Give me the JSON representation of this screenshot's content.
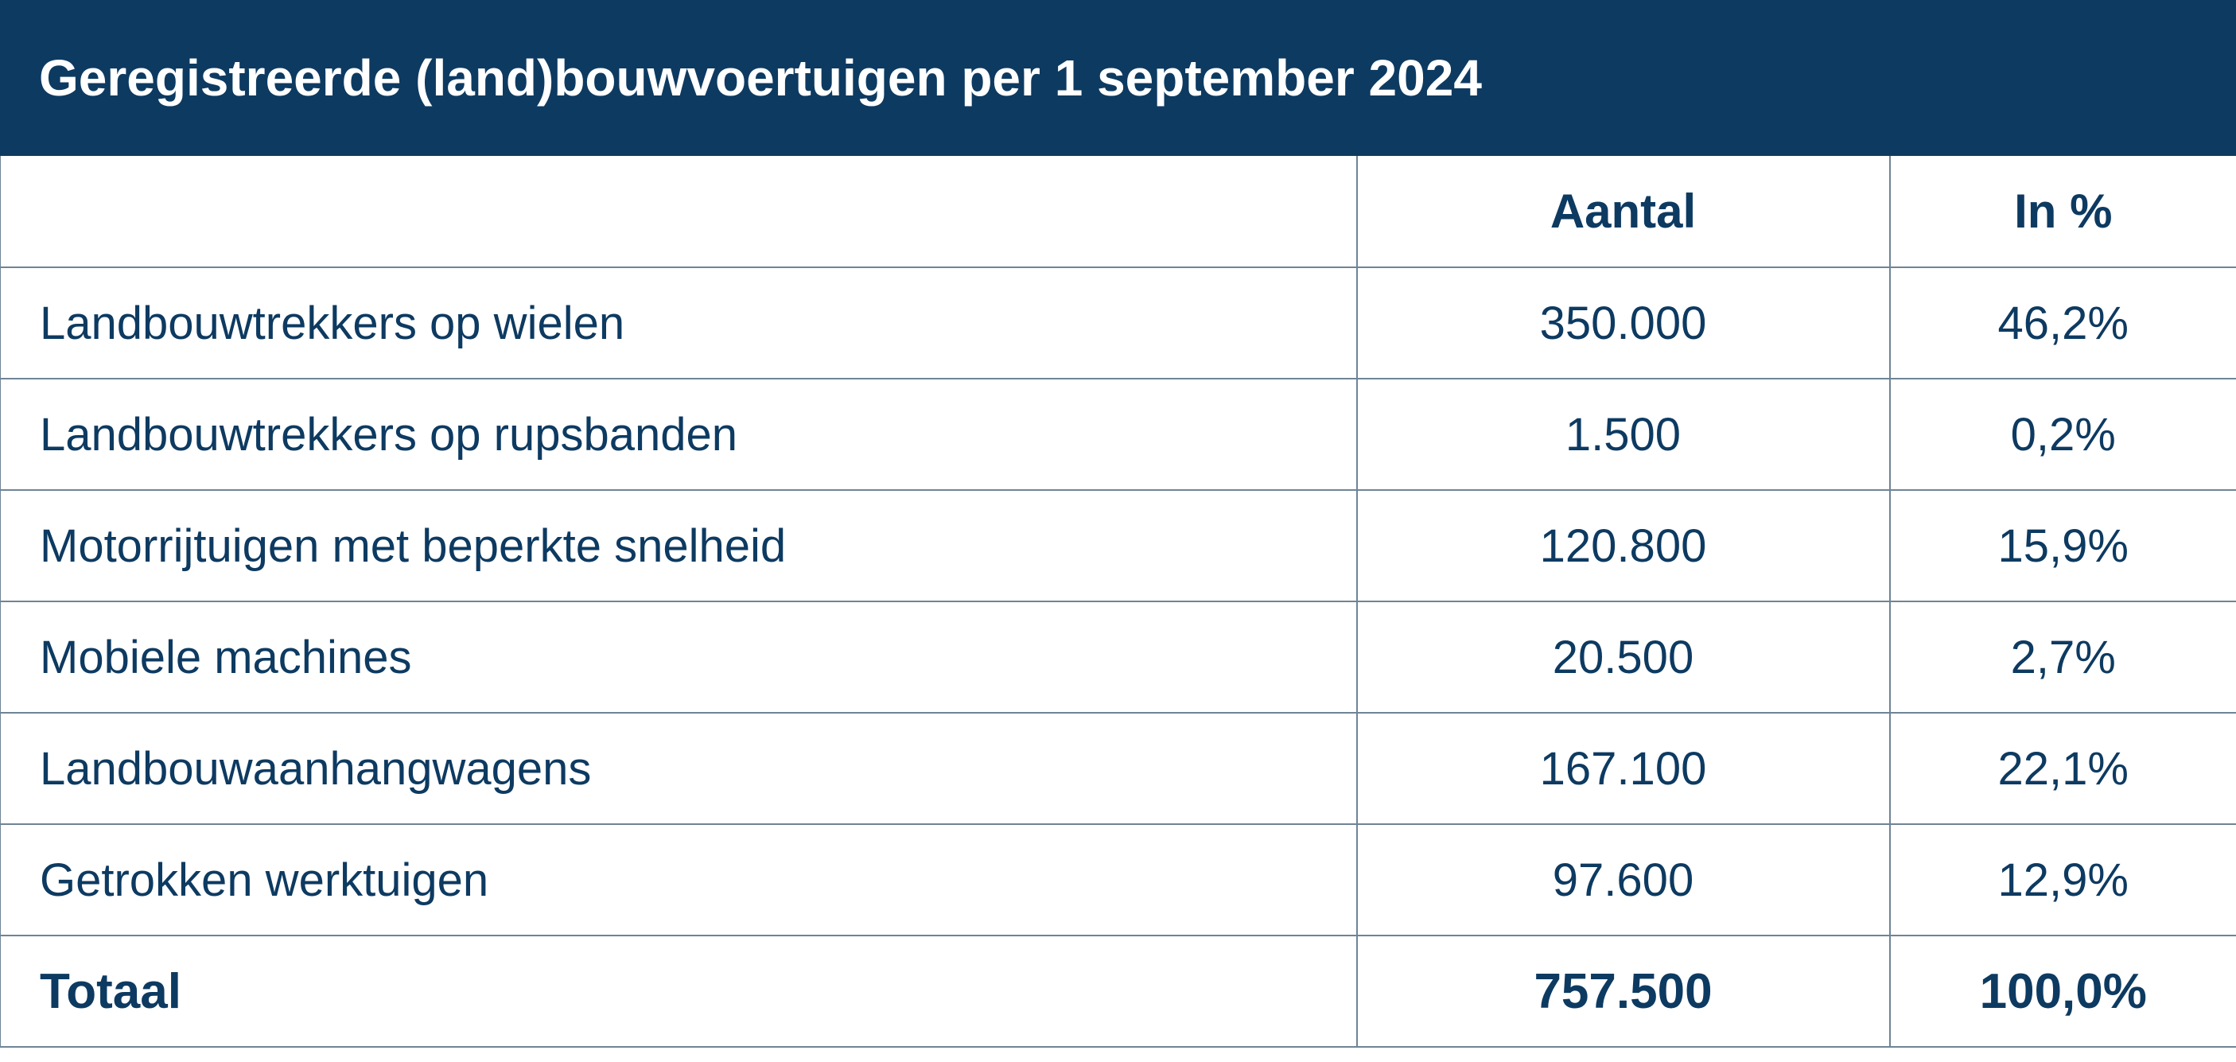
{
  "title": "Geregistreerde (land)bouwvoertuigen per 1 september 2024",
  "colors": {
    "header_background": "#0d3a61",
    "text": "#0d3a61",
    "grid_line": "#6e8496",
    "background": "#ffffff"
  },
  "table": {
    "header": {
      "category": "",
      "count": "Aantal",
      "percent": "In %"
    },
    "rows": [
      {
        "category": "Landbouwtrekkers op wielen",
        "count": "350.000",
        "percent": "46,2%"
      },
      {
        "category": "Landbouwtrekkers op rupsbanden",
        "count": "1.500",
        "percent": "0,2%"
      },
      {
        "category": "Motorrijtuigen met beperkte snelheid",
        "count": "120.800",
        "percent": "15,9%"
      },
      {
        "category": "Mobiele machines",
        "count": "20.500",
        "percent": "2,7%"
      },
      {
        "category": "Landbouwaanhangwagens",
        "count": "167.100",
        "percent": "22,1%"
      },
      {
        "category": "Getrokken werktuigen",
        "count": "97.600",
        "percent": "12,9%"
      }
    ],
    "total": {
      "category": "Totaal",
      "count": "757.500",
      "percent": "100,0%"
    }
  },
  "chart_data": {
    "type": "table",
    "title": "Geregistreerde (land)bouwvoertuigen per 1 september 2024",
    "columns": [
      "",
      "Aantal",
      "In %"
    ],
    "categories": [
      "Landbouwtrekkers op wielen",
      "Landbouwtrekkers op rupsbanden",
      "Motorrijtuigen met beperkte snelheid",
      "Mobiele machines",
      "Landbouwaanhangwagens",
      "Getrokken werktuigen"
    ],
    "series": [
      {
        "name": "Aantal",
        "values": [
          350000,
          1500,
          120800,
          20500,
          167100,
          97600
        ]
      },
      {
        "name": "In %",
        "values": [
          46.2,
          0.2,
          15.9,
          2.7,
          22.1,
          12.9
        ]
      }
    ],
    "total": {
      "Aantal": 757500,
      "In %": 100.0
    }
  }
}
